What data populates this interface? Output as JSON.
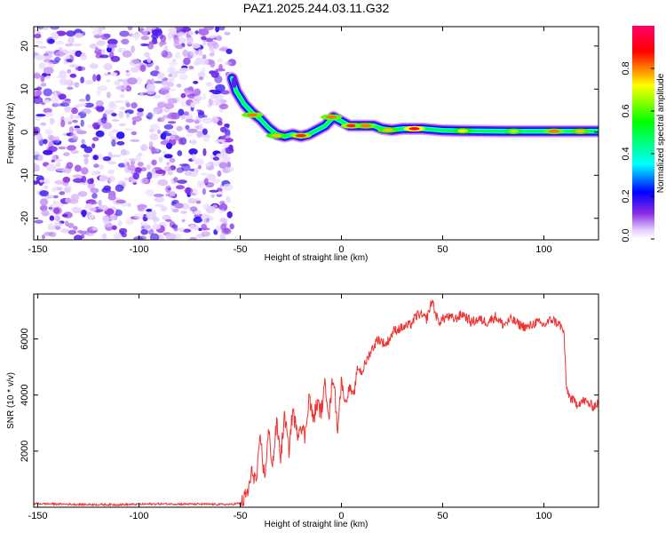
{
  "title": "PAZ1.2025.244.03.11.G32",
  "chart_data": [
    {
      "type": "heatmap",
      "name": "spectrogram",
      "xlabel": "Height of straight line (km)",
      "ylabel": "Frequency (Hz)",
      "xlim": [
        -152,
        127
      ],
      "ylim": [
        -25,
        24.5
      ],
      "xticks": [
        -150,
        -100,
        -50,
        0,
        50,
        100
      ],
      "yticks": [
        -20,
        -10,
        0,
        10,
        20
      ],
      "colorbar": {
        "label": "Normalized spectral amplitude",
        "range": [
          0,
          1
        ],
        "ticks": [
          "0.0",
          "0.2",
          "0.4",
          "0.6",
          "0.8"
        ],
        "tick_values": [
          0,
          0.2,
          0.4,
          0.6,
          0.8
        ],
        "colormap": [
          "#ffffff",
          "#e6d2ff",
          "#8a2be2",
          "#0000ff",
          "#00ffff",
          "#00ff00",
          "#ffff00",
          "#ff0000",
          "#ff0066"
        ]
      },
      "noise_region_x": [
        -152,
        -54
      ],
      "signal_track": [
        {
          "x": -54,
          "f": 12.5
        },
        {
          "x": -52,
          "f": 9.5
        },
        {
          "x": -48,
          "f": 6.5
        },
        {
          "x": -44,
          "f": 4.5
        },
        {
          "x": -40,
          "f": 3.0
        },
        {
          "x": -36,
          "f": 1.0
        },
        {
          "x": -32,
          "f": -0.5
        },
        {
          "x": -28,
          "f": -1.0
        },
        {
          "x": -24,
          "f": -0.5
        },
        {
          "x": -20,
          "f": -1.0
        },
        {
          "x": -16,
          "f": -0.5
        },
        {
          "x": -12,
          "f": 0.5
        },
        {
          "x": -8,
          "f": 1.5
        },
        {
          "x": -4,
          "f": 3.5
        },
        {
          "x": 0,
          "f": 2.5
        },
        {
          "x": 4,
          "f": 1.5
        },
        {
          "x": 10,
          "f": 1.5
        },
        {
          "x": 16,
          "f": 1.5
        },
        {
          "x": 20,
          "f": 0.8
        },
        {
          "x": 25,
          "f": 0.5
        },
        {
          "x": 30,
          "f": 0.8
        },
        {
          "x": 40,
          "f": 0.8
        },
        {
          "x": 50,
          "f": 0.4
        },
        {
          "x": 60,
          "f": 0.3
        },
        {
          "x": 80,
          "f": 0.2
        },
        {
          "x": 100,
          "f": 0.2
        },
        {
          "x": 127,
          "f": 0.2
        }
      ],
      "hotspots": [
        {
          "x": -44,
          "f": 4.0,
          "amp": 0.85
        },
        {
          "x": -32,
          "f": -0.8,
          "amp": 0.8
        },
        {
          "x": -20,
          "f": -0.8,
          "amp": 0.9
        },
        {
          "x": -5,
          "f": 3.5,
          "amp": 0.85
        },
        {
          "x": 5,
          "f": 1.5,
          "amp": 0.9
        },
        {
          "x": 12,
          "f": 1.5,
          "amp": 0.85
        },
        {
          "x": 23,
          "f": 0.5,
          "amp": 0.8
        },
        {
          "x": 36,
          "f": 0.8,
          "amp": 1.0
        },
        {
          "x": 60,
          "f": 0.3,
          "amp": 0.75
        },
        {
          "x": 85,
          "f": 0.2,
          "amp": 0.7
        },
        {
          "x": 105,
          "f": 0.2,
          "amp": 0.85
        },
        {
          "x": 118,
          "f": 0.2,
          "amp": 0.8
        }
      ]
    },
    {
      "type": "line",
      "name": "snr",
      "xlabel": "Height of straight line (km)",
      "ylabel": "SNR (10 * v/v)",
      "xlim": [
        -152,
        127
      ],
      "ylim": [
        0,
        7600
      ],
      "xticks": [
        -150,
        -100,
        -50,
        0,
        50,
        100
      ],
      "yticks": [
        2000,
        4000,
        6000
      ],
      "color": "#ee3333",
      "series": [
        {
          "name": "SNR",
          "x": [
            -152,
            -130,
            -110,
            -90,
            -70,
            -55,
            -49,
            -46,
            -44,
            -42,
            -40,
            -38,
            -36,
            -34,
            -32,
            -30,
            -28,
            -26,
            -24,
            -22,
            -20,
            -18,
            -16,
            -14,
            -12,
            -10,
            -8,
            -6,
            -4,
            -2,
            0,
            2,
            4,
            6,
            8,
            10,
            14,
            18,
            22,
            26,
            30,
            34,
            38,
            42,
            45,
            46,
            48,
            52,
            56,
            60,
            64,
            68,
            72,
            76,
            80,
            84,
            88,
            92,
            96,
            100,
            104,
            108,
            110,
            111,
            113,
            116,
            120,
            124,
            127
          ],
          "y": [
            130,
            100,
            90,
            120,
            110,
            100,
            150,
            600,
            1300,
            900,
            2500,
            1000,
            2700,
            1500,
            3000,
            1800,
            3300,
            2000,
            3500,
            2600,
            3000,
            2500,
            4000,
            3100,
            3700,
            3400,
            4400,
            3300,
            4800,
            2800,
            4500,
            3700,
            4300,
            3900,
            5000,
            4800,
            5500,
            6000,
            5800,
            6300,
            6400,
            6500,
            6900,
            6700,
            7400,
            7000,
            6600,
            6800,
            6700,
            6900,
            6600,
            6700,
            6600,
            6800,
            6500,
            6700,
            6500,
            6400,
            6600,
            6500,
            6700,
            6500,
            6200,
            4300,
            3900,
            3700,
            3800,
            3600,
            3700
          ]
        }
      ]
    }
  ]
}
